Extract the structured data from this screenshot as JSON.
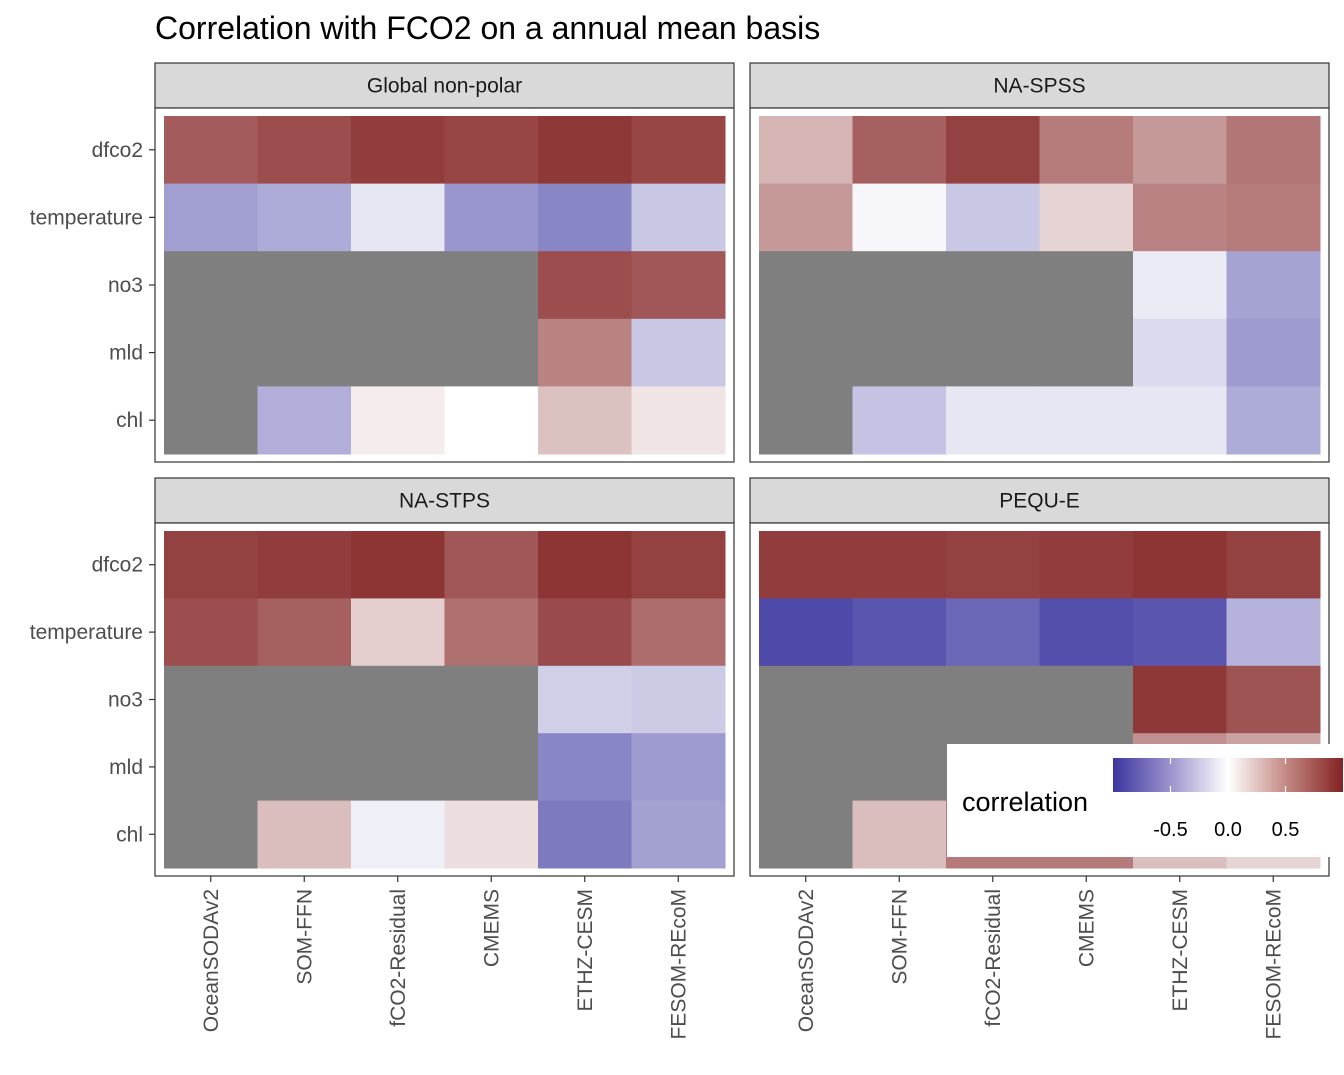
{
  "chart_data": {
    "type": "heatmap",
    "title": "Correlation with FCO2 on a annual mean basis",
    "x_categories": [
      "OceanSODAv2",
      "SOM-FFN",
      "fCO2-Residual",
      "CMEMS",
      "ETHZ-CESM",
      "FESOM-REcoM"
    ],
    "y_categories": [
      "dfco2",
      "temperature",
      "no3",
      "mld",
      "chl"
    ],
    "facets": [
      {
        "name": "Global non-polar",
        "values": [
          [
            0.74,
            0.8,
            0.88,
            0.84,
            0.9,
            0.84
          ],
          [
            -0.48,
            -0.42,
            -0.12,
            -0.52,
            -0.6,
            -0.28
          ],
          [
            null,
            null,
            null,
            null,
            0.8,
            0.76
          ],
          [
            null,
            null,
            null,
            null,
            0.56,
            -0.28
          ],
          [
            null,
            -0.4,
            0.08,
            0.0,
            0.28,
            0.12
          ]
        ]
      },
      {
        "name": "NA-SPSS",
        "values": [
          [
            0.34,
            0.72,
            0.86,
            0.6,
            0.46,
            0.62
          ],
          [
            0.46,
            -0.04,
            -0.28,
            0.2,
            0.56,
            0.6
          ],
          [
            null,
            null,
            null,
            null,
            -0.1,
            -0.46
          ],
          [
            null,
            null,
            null,
            null,
            -0.18,
            -0.5
          ],
          [
            null,
            -0.3,
            -0.12,
            -0.12,
            -0.12,
            -0.42
          ]
        ]
      },
      {
        "name": "NA-STPS",
        "values": [
          [
            0.86,
            0.88,
            0.92,
            0.76,
            0.92,
            0.86
          ],
          [
            0.8,
            0.72,
            0.22,
            0.65,
            0.82,
            0.66
          ],
          [
            null,
            null,
            null,
            null,
            -0.24,
            -0.26
          ],
          [
            null,
            null,
            null,
            null,
            -0.6,
            -0.5
          ],
          [
            null,
            0.3,
            -0.08,
            0.15,
            -0.66,
            -0.47
          ]
        ]
      },
      {
        "name": "PEQU-E",
        "values": [
          [
            0.88,
            0.88,
            0.86,
            0.88,
            0.92,
            0.86
          ],
          [
            -0.9,
            -0.84,
            -0.75,
            -0.88,
            -0.84,
            -0.38
          ],
          [
            null,
            null,
            null,
            null,
            0.9,
            0.78
          ],
          [
            null,
            null,
            null,
            null,
            0.5,
            0.42
          ],
          [
            null,
            0.3,
            0.6,
            0.6,
            0.3,
            0.2
          ]
        ]
      }
    ],
    "legend": {
      "title": "correlation",
      "ticks": [
        "-0.5",
        "0.0",
        "0.5"
      ],
      "tick_values": [
        -0.5,
        0.0,
        0.5
      ],
      "range": [
        -1,
        1
      ],
      "position": "bottom-right (overlapping plot)"
    },
    "colors": {
      "low": "#3b36a0",
      "mid": "#ffffff",
      "high": "#832222",
      "na": "#7f7f7f",
      "strip_bg": "#d9d9d9"
    },
    "grid": false
  }
}
